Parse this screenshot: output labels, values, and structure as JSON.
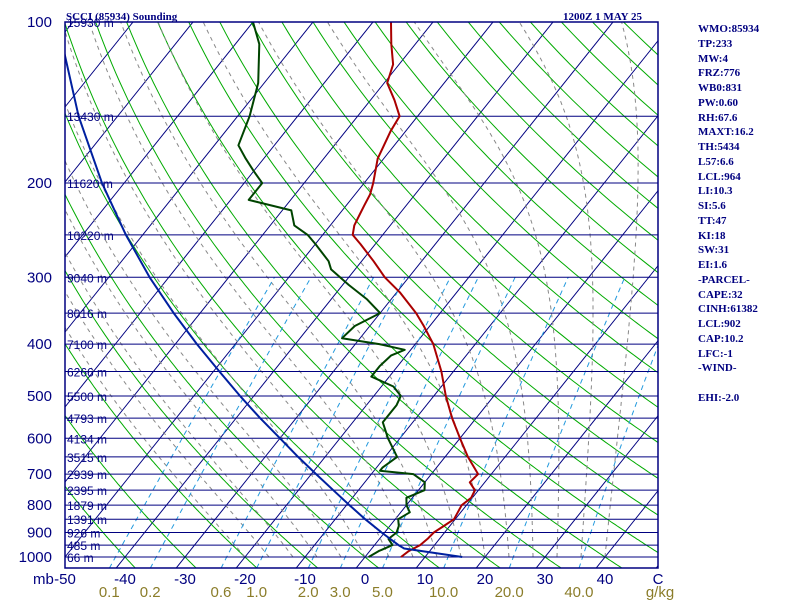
{
  "header": {
    "station": "SCCI (85934) Sounding",
    "time": "1200Z  1 MAY 25"
  },
  "indices": [
    "WMO:85934",
    "TP:233",
    "MW:4",
    "FRZ:776",
    "WB0:831",
    "PW:0.60",
    "RH:67.6",
    "MAXT:16.2",
    "TH:5434",
    "L57:6.6",
    "LCL:964",
    "LI:10.3",
    "SI:5.6",
    "TT:47",
    "KI:18",
    "SW:31",
    "EI:1.6",
    "-PARCEL-",
    "CAPE:32",
    "CINH:61382",
    "LCL:902",
    "CAP:10.2",
    "LFC:-1",
    "-WIND-",
    "",
    "EHI:-2.0"
  ],
  "colors": {
    "frame": "#000080",
    "isobar": "#000080",
    "temperature": "#aa0000",
    "dewpoint": "#004400",
    "parcel": "#0020a0",
    "isotherm": "#000080",
    "dry_adiabat": "#00aa00",
    "moist_adiabat": "#888888",
    "mixing_ratio": "#2299dd",
    "mixing_label": "#8b7d2a"
  },
  "chart_data": {
    "type": "skew-t log-p sounding",
    "y_unit": "mb",
    "y_ticks": [
      100,
      200,
      300,
      400,
      500,
      600,
      700,
      800,
      900,
      1000
    ],
    "y_range": [
      1000,
      100
    ],
    "x_unit": "C",
    "x_ticks": [
      -50,
      -40,
      -30,
      -20,
      -10,
      0,
      10,
      20,
      30,
      40
    ],
    "x_range": [
      -50,
      50
    ],
    "mixing_ratio_unit": "g/kg",
    "mixing_ratio_labels": [
      "0.1",
      "0.2",
      "0.6",
      "1.0",
      "2.0",
      "3.0",
      "5.0",
      "10.0",
      "20.0",
      "40.0"
    ],
    "mixing_ratio_values": [
      0.1,
      0.2,
      0.6,
      1.0,
      2.0,
      3.0,
      5.0,
      10.0,
      20.0,
      40.0
    ],
    "height_levels": [
      {
        "p": 100,
        "label": "15930 m"
      },
      {
        "p": 150,
        "label": "13430 m"
      },
      {
        "p": 200,
        "label": "11620 m"
      },
      {
        "p": 250,
        "label": "10220 m"
      },
      {
        "p": 300,
        "label": "9040 m"
      },
      {
        "p": 350,
        "label": "8016 m"
      },
      {
        "p": 400,
        "label": "7100 m"
      },
      {
        "p": 450,
        "label": "6266 m"
      },
      {
        "p": 500,
        "label": "5500 m"
      },
      {
        "p": 550,
        "label": "4793 m"
      },
      {
        "p": 600,
        "label": "4134 m"
      },
      {
        "p": 650,
        "label": "3515 m"
      },
      {
        "p": 700,
        "label": "2939 m"
      },
      {
        "p": 750,
        "label": "2395 m"
      },
      {
        "p": 800,
        "label": "1879 m"
      },
      {
        "p": 850,
        "label": "1391 m"
      },
      {
        "p": 900,
        "label": "926 m"
      },
      {
        "p": 950,
        "label": "485 m"
      },
      {
        "p": 1000,
        "label": "66 m"
      }
    ],
    "series": [
      {
        "key": "temperature",
        "points": [
          [
            1000,
            6.0
          ],
          [
            975,
            6.5
          ],
          [
            950,
            7.6
          ],
          [
            925,
            8.0
          ],
          [
            900,
            8.2
          ],
          [
            875,
            9.0
          ],
          [
            850,
            9.8
          ],
          [
            825,
            9.5
          ],
          [
            800,
            9.2
          ],
          [
            775,
            9.8
          ],
          [
            750,
            9.4
          ],
          [
            725,
            7.5
          ],
          [
            700,
            7.8
          ],
          [
            650,
            3.8
          ],
          [
            600,
            0.0
          ],
          [
            550,
            -4.0
          ],
          [
            500,
            -8.0
          ],
          [
            450,
            -12.0
          ],
          [
            400,
            -17.0
          ],
          [
            370,
            -21.0
          ],
          [
            350,
            -24.0
          ],
          [
            320,
            -29.5
          ],
          [
            300,
            -34.0
          ],
          [
            280,
            -38.0
          ],
          [
            260,
            -42.5
          ],
          [
            250,
            -45.0
          ],
          [
            240,
            -46.0
          ],
          [
            230,
            -46.5
          ],
          [
            220,
            -47.0
          ],
          [
            210,
            -47.5
          ],
          [
            200,
            -48.5
          ],
          [
            180,
            -51.0
          ],
          [
            160,
            -52.5
          ],
          [
            150,
            -53.0
          ],
          [
            140,
            -56.0
          ],
          [
            130,
            -59.5
          ],
          [
            120,
            -61.0
          ],
          [
            110,
            -64.0
          ],
          [
            100,
            -67.0
          ]
        ]
      },
      {
        "key": "dewpoint",
        "points": [
          [
            1000,
            0.6
          ],
          [
            975,
            1.5
          ],
          [
            950,
            3.0
          ],
          [
            925,
            1.5
          ],
          [
            900,
            2.0
          ],
          [
            875,
            1.5
          ],
          [
            850,
            0.5
          ],
          [
            825,
            1.5
          ],
          [
            800,
            0.0
          ],
          [
            775,
            -1.0
          ],
          [
            750,
            1.0
          ],
          [
            725,
            0.0
          ],
          [
            700,
            -3.0
          ],
          [
            690,
            -9.0
          ],
          [
            680,
            -9.0
          ],
          [
            650,
            -8.0
          ],
          [
            600,
            -12.0
          ],
          [
            560,
            -15.0
          ],
          [
            520,
            -15.0
          ],
          [
            500,
            -15.5
          ],
          [
            480,
            -18.0
          ],
          [
            460,
            -23.0
          ],
          [
            440,
            -23.0
          ],
          [
            420,
            -22.5
          ],
          [
            410,
            -21.0
          ],
          [
            400,
            -26.0
          ],
          [
            390,
            -33.0
          ],
          [
            370,
            -32.5
          ],
          [
            350,
            -30.0
          ],
          [
            330,
            -34.0
          ],
          [
            310,
            -39.0
          ],
          [
            290,
            -44.0
          ],
          [
            280,
            -45.5
          ],
          [
            260,
            -50.0
          ],
          [
            250,
            -52.5
          ],
          [
            240,
            -56.0
          ],
          [
            225,
            -58.5
          ],
          [
            215,
            -67.0
          ],
          [
            200,
            -67.0
          ],
          [
            190,
            -70.0
          ],
          [
            180,
            -73.0
          ],
          [
            170,
            -76.0
          ],
          [
            150,
            -78.0
          ],
          [
            130,
            -81.0
          ],
          [
            110,
            -86.0
          ],
          [
            100,
            -90.0
          ]
        ]
      },
      {
        "key": "parcel",
        "points": [
          [
            1000,
            16.2
          ],
          [
            964,
            5.4
          ],
          [
            950,
            4.0
          ],
          [
            900,
            -0.5
          ],
          [
            850,
            -5.0
          ],
          [
            800,
            -9.5
          ],
          [
            750,
            -14.2
          ],
          [
            700,
            -19.2
          ],
          [
            650,
            -24.5
          ],
          [
            600,
            -30.0
          ],
          [
            550,
            -36.0
          ],
          [
            500,
            -42.3
          ],
          [
            450,
            -49.0
          ],
          [
            400,
            -56.4
          ],
          [
            350,
            -64.4
          ],
          [
            300,
            -73.2
          ],
          [
            250,
            -82.8
          ],
          [
            200,
            -93.7
          ],
          [
            150,
            -106.5
          ],
          [
            100,
            -122.6
          ]
        ]
      }
    ]
  }
}
